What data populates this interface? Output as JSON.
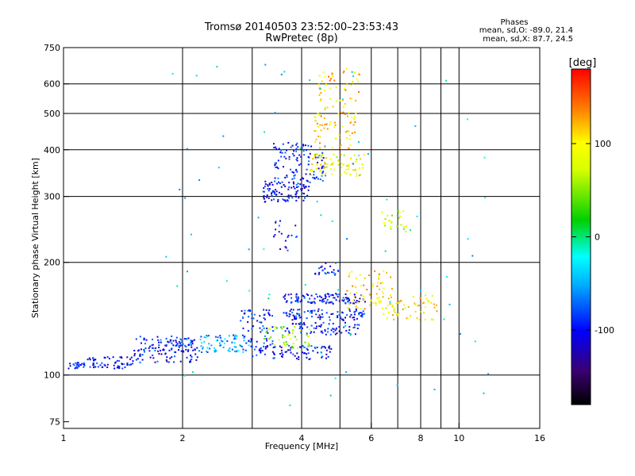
{
  "chart_data": {
    "type": "scatter",
    "title_line1": "Tromsø 20140503 23:52:00–23:53:43",
    "title_line2": "RwPretec (8p)",
    "xlabel": "Frequency [MHz]",
    "ylabel": "Stationary phase Virtual Height [km]",
    "x_scale": "log",
    "y_scale": "log",
    "xlim": [
      1,
      16
    ],
    "ylim": [
      72,
      750
    ],
    "x_ticks": [
      1,
      2,
      4,
      6,
      8,
      10,
      16
    ],
    "x_tick_labels": [
      "1",
      "2",
      "4",
      "6",
      "8",
      "10",
      "16"
    ],
    "x_gridlines": [
      2,
      3,
      4,
      5,
      6,
      7,
      8,
      9,
      10
    ],
    "y_ticks": [
      75,
      100,
      200,
      300,
      400,
      500,
      600,
      750
    ],
    "y_tick_labels": [
      "75",
      "100",
      "200",
      "300",
      "400",
      "500",
      "600",
      "750"
    ],
    "y_gridlines": [
      100,
      200,
      300,
      400,
      500,
      600
    ],
    "grid": true,
    "phase_legend": {
      "title": "Phases",
      "line_o": "mean, sd,O: -89.0, 21.4",
      "line_x": "mean, sd,X: 87.7, 24.5"
    },
    "colorbar": {
      "label": "[deg]",
      "range": [
        -180,
        180
      ],
      "ticks": [
        100,
        0,
        -100
      ],
      "tick_labels": [
        "100",
        "0",
        "-100"
      ],
      "placement": "right"
    },
    "point_groups": [
      {
        "x_range": [
          1.03,
          1.15
        ],
        "y_range": [
          104,
          108
        ],
        "phase": -95,
        "count": 25
      },
      {
        "x_range": [
          1.15,
          1.5
        ],
        "y_range": [
          104,
          112
        ],
        "phase": -100,
        "count": 60
      },
      {
        "x_range": [
          1.5,
          2.2
        ],
        "y_range": [
          108,
          125
        ],
        "phase": -100,
        "count": 90
      },
      {
        "x_range": [
          1.55,
          2.2
        ],
        "y_range": [
          115,
          127
        ],
        "phase": -90,
        "count": 50
      },
      {
        "x_range": [
          2.2,
          2.9
        ],
        "y_range": [
          115,
          128
        ],
        "phase": -55,
        "count": 70
      },
      {
        "x_range": [
          2.8,
          3.4
        ],
        "y_range": [
          115,
          150
        ],
        "phase": -95,
        "count": 70
      },
      {
        "x_range": [
          3.0,
          4.8
        ],
        "y_range": [
          110,
          120
        ],
        "phase": -100,
        "count": 80
      },
      {
        "x_range": [
          3.2,
          4.2
        ],
        "y_range": [
          118,
          135
        ],
        "phase": 60,
        "count": 45
      },
      {
        "x_range": [
          3.6,
          5.8
        ],
        "y_range": [
          155,
          165
        ],
        "phase": -100,
        "count": 110
      },
      {
        "x_range": [
          3.6,
          5.8
        ],
        "y_range": [
          140,
          150
        ],
        "phase": -100,
        "count": 90
      },
      {
        "x_range": [
          3.6,
          5.6
        ],
        "y_range": [
          128,
          138
        ],
        "phase": -100,
        "count": 70
      },
      {
        "x_range": [
          4.3,
          5.0
        ],
        "y_range": [
          185,
          200
        ],
        "phase": -100,
        "count": 25
      },
      {
        "x_range": [
          5.2,
          6.8
        ],
        "y_range": [
          150,
          190
        ],
        "phase": 110,
        "count": 70
      },
      {
        "x_range": [
          6.3,
          8.8
        ],
        "y_range": [
          140,
          165
        ],
        "phase": 100,
        "count": 60
      },
      {
        "x_range": [
          3.2,
          4.2
        ],
        "y_range": [
          290,
          330
        ],
        "phase": -100,
        "count": 100
      },
      {
        "x_range": [
          3.4,
          4.6
        ],
        "y_range": [
          330,
          420
        ],
        "phase": -95,
        "count": 110
      },
      {
        "x_range": [
          4.2,
          5.8
        ],
        "y_range": [
          340,
          390
        ],
        "phase": 90,
        "count": 80
      },
      {
        "x_range": [
          4.3,
          5.5
        ],
        "y_range": [
          400,
          560
        ],
        "phase": 110,
        "count": 80
      },
      {
        "x_range": [
          4.4,
          5.6
        ],
        "y_range": [
          560,
          660
        ],
        "phase": 115,
        "count": 35
      },
      {
        "x_range": [
          6.4,
          7.4
        ],
        "y_range": [
          240,
          275
        ],
        "phase": 70,
        "count": 25
      },
      {
        "x_range": [
          3.4,
          3.9
        ],
        "y_range": [
          215,
          260
        ],
        "phase": -100,
        "count": 20
      },
      {
        "x_range": [
          1.8,
          12.0
        ],
        "y_range": [
          80,
          700
        ],
        "phase": -30,
        "count": 80
      }
    ]
  }
}
